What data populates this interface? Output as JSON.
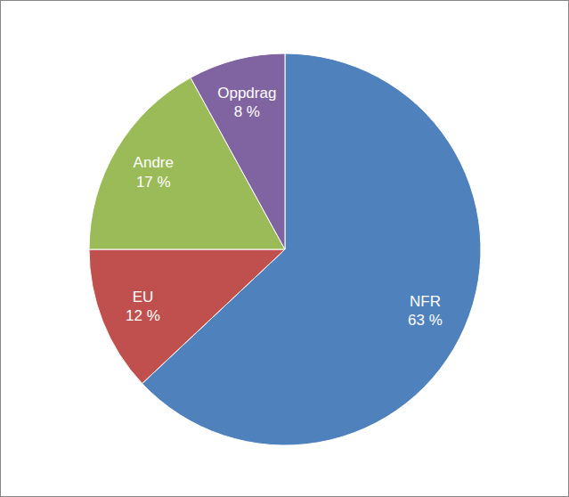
{
  "chart_data": {
    "type": "pie",
    "categories": [
      "NFR",
      "EU",
      "Andre",
      "Oppdrag"
    ],
    "values": [
      63,
      12,
      17,
      8
    ],
    "value_labels": [
      "63 %",
      "12 %",
      "17 %",
      "8 %"
    ],
    "colors": [
      "#4f81bd",
      "#c0504d",
      "#9bbb59",
      "#8064a2"
    ],
    "data_labels": true
  }
}
